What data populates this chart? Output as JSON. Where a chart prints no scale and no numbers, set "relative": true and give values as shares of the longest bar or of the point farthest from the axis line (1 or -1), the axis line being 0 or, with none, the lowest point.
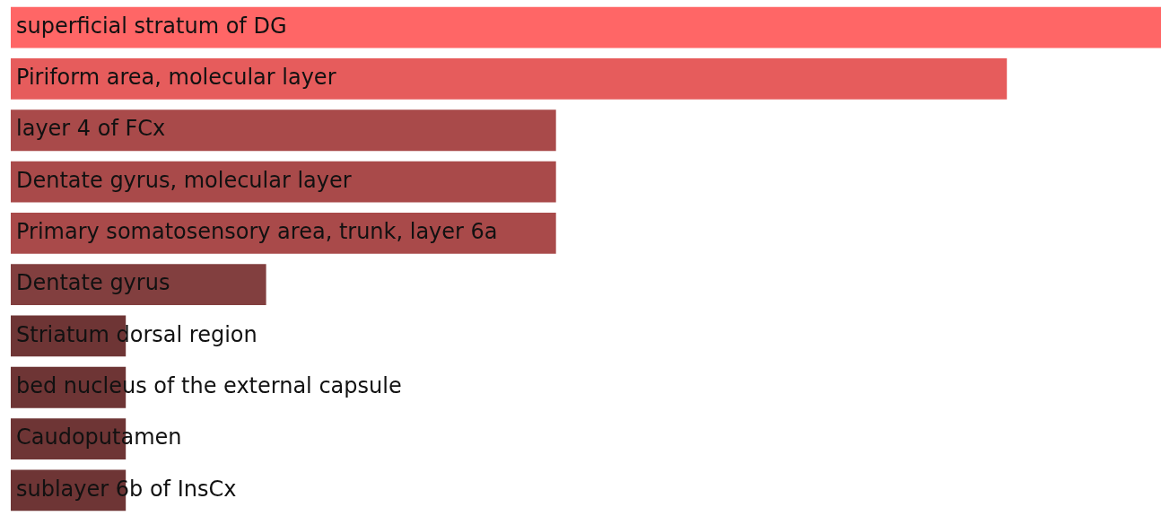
{
  "chart_data": {
    "type": "bar",
    "orientation": "horizontal",
    "relative": true,
    "categories": [
      "superficial stratum of DG",
      "Piriform area, molecular layer",
      "layer 4 of FCx",
      "Dentate gyrus, molecular layer",
      "Primary somatosensory area, trunk, layer 6a",
      "Dentate gyrus",
      "Striatum dorsal region",
      "bed nucleus of the external capsule",
      "Caudoputamen",
      "sublayer 6b of InsCx"
    ],
    "values": [
      1,
      0.866,
      0.474,
      0.474,
      0.474,
      0.222,
      0.1,
      0.1,
      0.1,
      0.1
    ],
    "colors": [
      "#ff6666",
      "#e65c5c",
      "#a94a4a",
      "#a94a4a",
      "#a94a4a",
      "#823f3f",
      "#6e3535",
      "#6e3535",
      "#6e3535",
      "#6e3535"
    ],
    "legend": false
  }
}
